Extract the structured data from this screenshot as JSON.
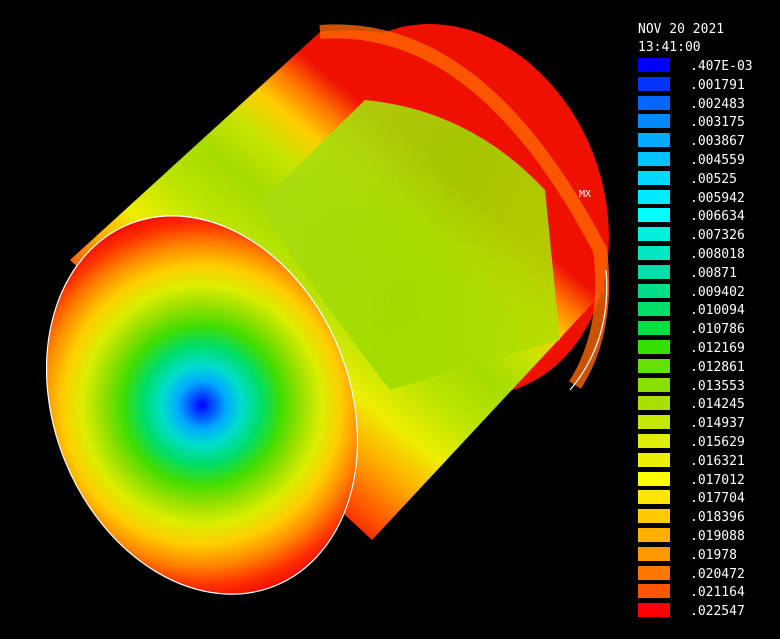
{
  "timestamp": {
    "date": "NOV 20 2021",
    "time": "13:41:00"
  },
  "max_marker": "MX",
  "legend": {
    "entries": [
      {
        "value": ".407E-03",
        "color": "#0000ff"
      },
      {
        "value": ".001791",
        "color": "#0033ff"
      },
      {
        "value": ".002483",
        "color": "#0066ff"
      },
      {
        "value": ".003175",
        "color": "#0088ff"
      },
      {
        "value": ".003867",
        "color": "#00aaff"
      },
      {
        "value": ".004559",
        "color": "#00c4ff"
      },
      {
        "value": ".00525",
        "color": "#00d8ff"
      },
      {
        "value": ".005942",
        "color": "#00eaff"
      },
      {
        "value": ".006634",
        "color": "#00ffff"
      },
      {
        "value": ".007326",
        "color": "#00f0dd"
      },
      {
        "value": ".008018",
        "color": "#00e6c0"
      },
      {
        "value": ".00871",
        "color": "#00ddaa"
      },
      {
        "value": ".009402",
        "color": "#00dd88"
      },
      {
        "value": ".010094",
        "color": "#00dd66"
      },
      {
        "value": ".010786",
        "color": "#00e040"
      },
      {
        "value": ".012169",
        "color": "#33e000"
      },
      {
        "value": ".012861",
        "color": "#66e000"
      },
      {
        "value": ".013553",
        "color": "#88e000"
      },
      {
        "value": ".014245",
        "color": "#a8e000"
      },
      {
        "value": ".014937",
        "color": "#c4e800"
      },
      {
        "value": ".015629",
        "color": "#ddee00"
      },
      {
        "value": ".016321",
        "color": "#eeee00"
      },
      {
        "value": ".017012",
        "color": "#ffff00"
      },
      {
        "value": ".017704",
        "color": "#ffe600"
      },
      {
        "value": ".018396",
        "color": "#ffcc00"
      },
      {
        "value": ".019088",
        "color": "#ffb000"
      },
      {
        "value": ".01978",
        "color": "#ff9900"
      },
      {
        "value": ".020472",
        "color": "#ff7700"
      },
      {
        "value": ".021164",
        "color": "#ff5500"
      },
      {
        "value": ".022547",
        "color": "#ff0000"
      }
    ]
  }
}
